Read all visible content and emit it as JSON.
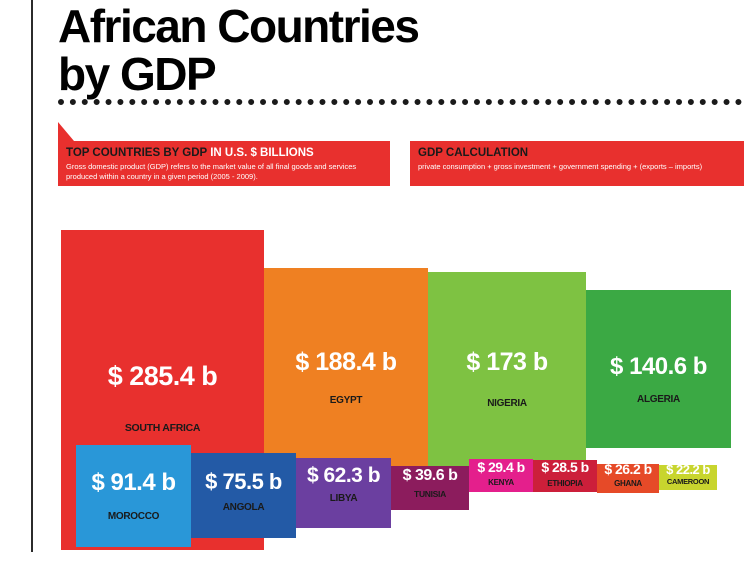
{
  "title_line1": "African Countries",
  "title_line2": "by GDP",
  "panel_left": {
    "heading_dark": "TOP COUNTRIES BY GDP",
    "heading_light": " IN U.S. $ BILLIONS",
    "body": "Gross domestic product (GDP) refers to the market value of all final goods and services produced within a country in a given period (2005 - 2009)."
  },
  "panel_right": {
    "heading": "GDP CALCULATION",
    "body": "private consumption + gross investment + government spending + (exports – imports)"
  },
  "chart_data": {
    "type": "bar",
    "title": "African Countries by GDP",
    "unit": "U.S. $ billions",
    "categories": [
      "SOUTH AFRICA",
      "EGYPT",
      "NIGERIA",
      "ALGERIA",
      "MOROCCO",
      "ANGOLA",
      "LIBYA",
      "TUNISIA",
      "KENYA",
      "ETHIOPIA",
      "GHANA",
      "CAMEROON"
    ],
    "values": [
      285.4,
      188.4,
      173,
      140.6,
      91.4,
      75.5,
      62.3,
      39.6,
      29.4,
      28.5,
      26.2,
      22.2
    ],
    "labels": [
      "$ 285.4 b",
      "$ 188.4 b",
      "$ 173 b",
      "$ 140.6 b",
      "$ 91.4 b",
      "$ 75.5 b",
      "$ 62.3 b",
      "$ 39.6 b",
      "$ 29.4 b",
      "$ 28.5 b",
      "$ 26.2 b",
      "$ 22.2 b"
    ],
    "colors": [
      "#e8302e",
      "#ef8022",
      "#7ec242",
      "#3ba944",
      "#2997d8",
      "#235aa6",
      "#6b3fa0",
      "#8c1c5d",
      "#e41f8c",
      "#cc1f3a",
      "#e64a28",
      "#c8d52e"
    ]
  }
}
